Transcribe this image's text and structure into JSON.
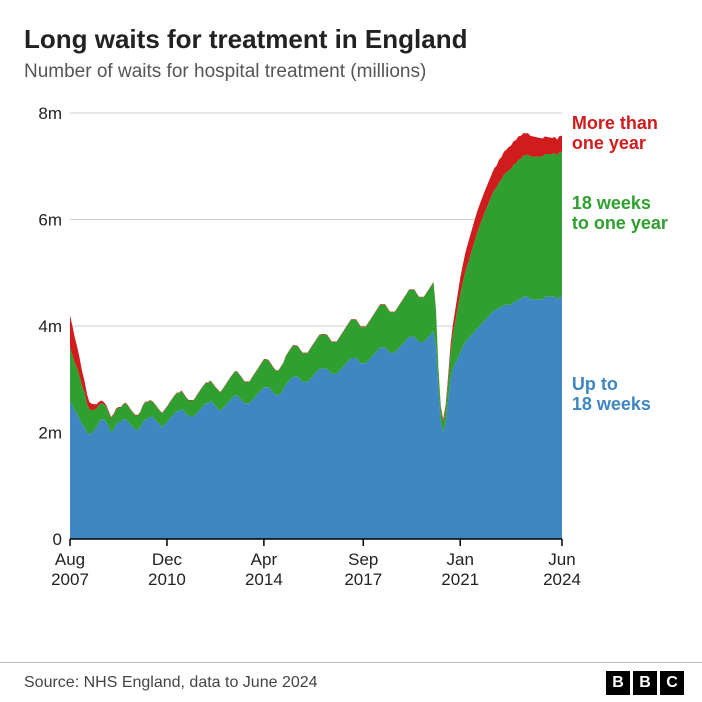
{
  "title": "Long waits for treatment in England",
  "subtitle": "Number of waits for hospital treatment (millions)",
  "source": "Source: NHS England, data to June 2024",
  "logo": [
    "B",
    "B",
    "C"
  ],
  "chart": {
    "type": "area-stacked",
    "background_color": "#ffffff",
    "grid_color": "#cccccc",
    "axis_color": "#000000",
    "title_fontsize": 26,
    "subtitle_fontsize": 19,
    "tick_fontsize": 17,
    "label_line_color": "#222222",
    "ylim": [
      0,
      8
    ],
    "ytick_step": 2,
    "yticks": [
      {
        "v": 0,
        "label": "0"
      },
      {
        "v": 2,
        "label": "2m"
      },
      {
        "v": 4,
        "label": "4m"
      },
      {
        "v": 6,
        "label": "6m"
      },
      {
        "v": 8,
        "label": "8m"
      }
    ],
    "xlim": [
      0,
      203
    ],
    "xticks": [
      {
        "i": 0,
        "l1": "Aug",
        "l2": "2007"
      },
      {
        "i": 40,
        "l1": "Dec",
        "l2": "2010"
      },
      {
        "i": 80,
        "l1": "Apr",
        "l2": "2014"
      },
      {
        "i": 121,
        "l1": "Sep",
        "l2": "2017"
      },
      {
        "i": 161,
        "l1": "Jan",
        "l2": "2021"
      },
      {
        "i": 203,
        "l1": "Jun",
        "l2": "2024"
      }
    ],
    "series": [
      {
        "name": "Up to 18 weeks",
        "color": "#3e87c3",
        "label_lines": [
          "Up to",
          "18 weeks"
        ],
        "label_at": {
          "x_frac": 1.02,
          "y_val": 2.8
        },
        "data": [
          2.6,
          2.5,
          2.4,
          2.35,
          2.25,
          2.15,
          2.1,
          2.0,
          1.95,
          2.0,
          2.05,
          2.1,
          2.2,
          2.25,
          2.25,
          2.2,
          2.1,
          2.0,
          2.05,
          2.15,
          2.2,
          2.2,
          2.25,
          2.25,
          2.2,
          2.15,
          2.1,
          2.05,
          2.05,
          2.1,
          2.2,
          2.25,
          2.25,
          2.3,
          2.3,
          2.25,
          2.2,
          2.15,
          2.1,
          2.15,
          2.2,
          2.25,
          2.3,
          2.35,
          2.4,
          2.4,
          2.45,
          2.4,
          2.35,
          2.3,
          2.3,
          2.3,
          2.35,
          2.4,
          2.45,
          2.5,
          2.55,
          2.55,
          2.6,
          2.55,
          2.5,
          2.45,
          2.4,
          2.45,
          2.5,
          2.55,
          2.6,
          2.65,
          2.7,
          2.7,
          2.65,
          2.6,
          2.55,
          2.55,
          2.55,
          2.6,
          2.65,
          2.7,
          2.75,
          2.8,
          2.85,
          2.85,
          2.85,
          2.8,
          2.75,
          2.7,
          2.7,
          2.75,
          2.8,
          2.9,
          2.95,
          3.0,
          3.05,
          3.05,
          3.05,
          3.0,
          2.95,
          2.95,
          2.95,
          3.0,
          3.05,
          3.1,
          3.15,
          3.2,
          3.2,
          3.2,
          3.2,
          3.15,
          3.1,
          3.1,
          3.1,
          3.15,
          3.2,
          3.25,
          3.3,
          3.35,
          3.4,
          3.4,
          3.4,
          3.35,
          3.3,
          3.3,
          3.3,
          3.35,
          3.4,
          3.45,
          3.5,
          3.55,
          3.6,
          3.6,
          3.6,
          3.55,
          3.5,
          3.5,
          3.5,
          3.55,
          3.6,
          3.65,
          3.7,
          3.75,
          3.8,
          3.8,
          3.8,
          3.75,
          3.7,
          3.7,
          3.7,
          3.75,
          3.8,
          3.85,
          3.9,
          3.6,
          2.8,
          2.2,
          2.0,
          2.2,
          2.6,
          3.0,
          3.2,
          3.3,
          3.4,
          3.5,
          3.6,
          3.7,
          3.75,
          3.8,
          3.85,
          3.9,
          3.95,
          4.0,
          4.05,
          4.1,
          4.15,
          4.2,
          4.25,
          4.3,
          4.3,
          4.35,
          4.35,
          4.4,
          4.4,
          4.4,
          4.4,
          4.45,
          4.45,
          4.5,
          4.5,
          4.55,
          4.55,
          4.55,
          4.5,
          4.5,
          4.5,
          4.5,
          4.5,
          4.5,
          4.55,
          4.55,
          4.55,
          4.55,
          4.55,
          4.5,
          4.55,
          4.55
        ]
      },
      {
        "name": "18 weeks to one year",
        "color": "#2fa02f",
        "label_lines": [
          "18 weeks",
          "to one year"
        ],
        "label_at": {
          "x_frac": 1.02,
          "y_val": 6.2
        },
        "data": [
          1.0,
          0.95,
          0.9,
          0.85,
          0.8,
          0.72,
          0.65,
          0.55,
          0.48,
          0.42,
          0.38,
          0.35,
          0.32,
          0.3,
          0.28,
          0.28,
          0.28,
          0.27,
          0.28,
          0.28,
          0.27,
          0.27,
          0.28,
          0.3,
          0.3,
          0.28,
          0.27,
          0.27,
          0.27,
          0.28,
          0.3,
          0.32,
          0.32,
          0.3,
          0.28,
          0.28,
          0.27,
          0.26,
          0.26,
          0.27,
          0.28,
          0.3,
          0.32,
          0.33,
          0.34,
          0.34,
          0.33,
          0.32,
          0.3,
          0.3,
          0.3,
          0.3,
          0.32,
          0.34,
          0.36,
          0.37,
          0.38,
          0.38,
          0.37,
          0.36,
          0.35,
          0.35,
          0.35,
          0.36,
          0.38,
          0.4,
          0.42,
          0.43,
          0.44,
          0.44,
          0.43,
          0.42,
          0.4,
          0.4,
          0.4,
          0.42,
          0.44,
          0.46,
          0.48,
          0.5,
          0.52,
          0.52,
          0.5,
          0.48,
          0.46,
          0.46,
          0.46,
          0.48,
          0.5,
          0.53,
          0.55,
          0.57,
          0.58,
          0.58,
          0.57,
          0.55,
          0.54,
          0.54,
          0.54,
          0.56,
          0.58,
          0.6,
          0.62,
          0.63,
          0.64,
          0.64,
          0.63,
          0.62,
          0.6,
          0.6,
          0.6,
          0.62,
          0.64,
          0.66,
          0.68,
          0.7,
          0.72,
          0.72,
          0.72,
          0.7,
          0.68,
          0.68,
          0.68,
          0.7,
          0.72,
          0.74,
          0.76,
          0.78,
          0.8,
          0.8,
          0.8,
          0.78,
          0.76,
          0.76,
          0.76,
          0.78,
          0.8,
          0.82,
          0.84,
          0.86,
          0.88,
          0.88,
          0.88,
          0.86,
          0.84,
          0.84,
          0.84,
          0.86,
          0.88,
          0.9,
          0.92,
          0.7,
          0.4,
          0.25,
          0.2,
          0.25,
          0.35,
          0.5,
          0.65,
          0.8,
          0.95,
          1.1,
          1.2,
          1.3,
          1.4,
          1.5,
          1.6,
          1.7,
          1.8,
          1.88,
          1.95,
          2.02,
          2.08,
          2.14,
          2.2,
          2.25,
          2.3,
          2.35,
          2.4,
          2.44,
          2.48,
          2.52,
          2.55,
          2.58,
          2.6,
          2.62,
          2.64,
          2.65,
          2.66,
          2.67,
          2.68,
          2.68,
          2.68,
          2.68,
          2.68,
          2.68,
          2.68,
          2.68,
          2.68,
          2.68,
          2.7,
          2.7,
          2.72,
          2.72
        ]
      },
      {
        "name": "More than one year",
        "color": "#d01c1c",
        "label_lines": [
          "More than",
          "one year"
        ],
        "label_at": {
          "x_frac": 1.02,
          "y_val": 7.7
        },
        "data": [
          0.6,
          0.55,
          0.48,
          0.4,
          0.34,
          0.28,
          0.22,
          0.17,
          0.14,
          0.12,
          0.1,
          0.08,
          0.06,
          0.05,
          0.04,
          0.03,
          0.02,
          0.02,
          0.02,
          0.02,
          0.01,
          0.01,
          0.01,
          0.01,
          0.01,
          0.01,
          0.01,
          0.01,
          0.01,
          0.01,
          0.01,
          0.01,
          0.01,
          0.01,
          0.01,
          0.01,
          0.01,
          0.01,
          0.01,
          0.01,
          0.01,
          0.01,
          0.01,
          0.01,
          0.01,
          0.01,
          0.01,
          0.01,
          0.01,
          0.01,
          0.01,
          0.01,
          0.01,
          0.01,
          0.01,
          0.01,
          0.01,
          0.01,
          0.01,
          0.01,
          0.01,
          0.01,
          0.01,
          0.01,
          0.01,
          0.01,
          0.01,
          0.01,
          0.01,
          0.01,
          0.01,
          0.01,
          0.01,
          0.01,
          0.01,
          0.01,
          0.01,
          0.01,
          0.01,
          0.01,
          0.01,
          0.01,
          0.01,
          0.01,
          0.01,
          0.01,
          0.01,
          0.01,
          0.01,
          0.01,
          0.01,
          0.01,
          0.01,
          0.01,
          0.01,
          0.01,
          0.01,
          0.01,
          0.01,
          0.01,
          0.01,
          0.01,
          0.01,
          0.01,
          0.01,
          0.01,
          0.01,
          0.01,
          0.01,
          0.01,
          0.01,
          0.01,
          0.01,
          0.01,
          0.01,
          0.01,
          0.01,
          0.01,
          0.01,
          0.01,
          0.01,
          0.01,
          0.01,
          0.01,
          0.01,
          0.01,
          0.01,
          0.01,
          0.01,
          0.01,
          0.01,
          0.01,
          0.01,
          0.01,
          0.01,
          0.01,
          0.01,
          0.01,
          0.01,
          0.01,
          0.01,
          0.01,
          0.01,
          0.01,
          0.01,
          0.01,
          0.01,
          0.01,
          0.01,
          0.01,
          0.01,
          0.02,
          0.03,
          0.04,
          0.05,
          0.07,
          0.1,
          0.14,
          0.18,
          0.22,
          0.26,
          0.3,
          0.33,
          0.35,
          0.37,
          0.38,
          0.39,
          0.4,
          0.4,
          0.4,
          0.4,
          0.4,
          0.4,
          0.4,
          0.4,
          0.41,
          0.41,
          0.42,
          0.42,
          0.43,
          0.43,
          0.44,
          0.44,
          0.44,
          0.44,
          0.44,
          0.43,
          0.42,
          0.41,
          0.4,
          0.39,
          0.38,
          0.37,
          0.36,
          0.35,
          0.34,
          0.33,
          0.32,
          0.31,
          0.3,
          0.3,
          0.3,
          0.3,
          0.3
        ]
      }
    ]
  }
}
